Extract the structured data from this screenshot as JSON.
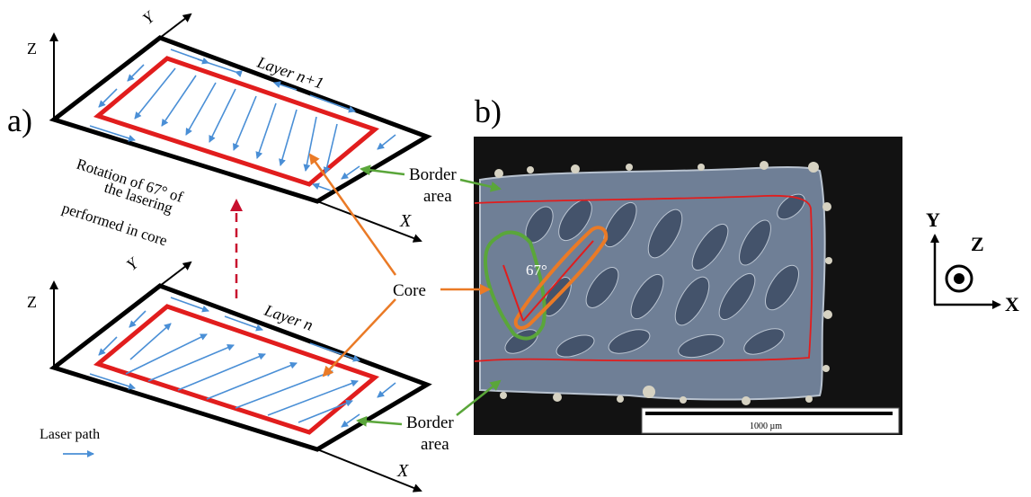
{
  "panel_a": {
    "panel_label": "a)",
    "upper_layer_label": "Layer n+1",
    "lower_layer_label": "Layer n",
    "axis_z": "Z",
    "axis_y": "Y",
    "axis_x": "X",
    "rotation_note_lines": [
      "Rotation of 67° of",
      "the lasering",
      "performed in core"
    ],
    "legend_label": "Laser path"
  },
  "callouts": {
    "border_upper_lines": [
      "Border",
      "area"
    ],
    "border_lower_lines": [
      "Border",
      "area"
    ],
    "core": "Core"
  },
  "panel_b": {
    "panel_label": "b)",
    "angle_label": "67°",
    "scale_bar_label": "1000 µm"
  },
  "axes_icon": {
    "y": "Y",
    "z": "Z",
    "x": "X"
  },
  "colors": {
    "border_red": "#e11d1d",
    "laser_blue": "#4a8fd6",
    "callout_orange": "#ea7a26",
    "callout_green": "#5aa63a",
    "micrograph_bg": "#121212",
    "micrograph_sample": "#6f7f96",
    "dashed_arrow": "#c8102e"
  }
}
